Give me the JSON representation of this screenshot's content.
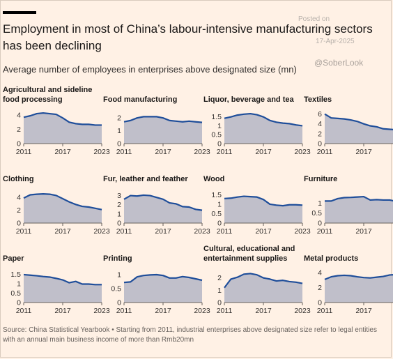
{
  "header": {
    "title": "Employment in most of China’s labour-intensive manufacturing sectors has been declining",
    "subtitle": "Average number of employees in enterprises above designated size (mn)"
  },
  "watermark": {
    "posted": "Posted on",
    "date": "17-Apr-2025",
    "handle": "@SoberLook"
  },
  "source": "Source: China Statistical Yearbook • Starting from 2011, industrial enterprises above designated size refer to legal entities with an annual main business income of more than Rmb20mn",
  "colors": {
    "line": "#1f4e9a",
    "fill": "#c0bfca",
    "background": "#fff1e5"
  },
  "chart_data": [
    {
      "type": "area",
      "title": "Agricultural and sideline food processing",
      "x": [
        2011,
        2012,
        2013,
        2014,
        2015,
        2016,
        2017,
        2018,
        2019,
        2020,
        2021,
        2022,
        2023
      ],
      "values": [
        3.7,
        3.9,
        4.2,
        4.3,
        4.2,
        4.1,
        3.6,
        3.0,
        2.8,
        2.7,
        2.7,
        2.6,
        2.6
      ],
      "ylim": [
        0,
        4.5
      ],
      "yticks": [
        0,
        2,
        4
      ],
      "xticks": [
        2011,
        2017,
        2023
      ]
    },
    {
      "type": "area",
      "title": "Food manufacturing",
      "x": [
        2011,
        2012,
        2013,
        2014,
        2015,
        2016,
        2017,
        2018,
        2019,
        2020,
        2021,
        2022,
        2023
      ],
      "values": [
        1.7,
        1.8,
        2.0,
        2.1,
        2.1,
        2.1,
        2.0,
        1.8,
        1.75,
        1.7,
        1.75,
        1.7,
        1.65
      ],
      "ylim": [
        0,
        2.5
      ],
      "yticks": [
        0,
        1,
        2
      ],
      "xticks": [
        2011,
        2017,
        2023
      ]
    },
    {
      "type": "area",
      "title": "Liquor, beverage and tea",
      "x": [
        2011,
        2012,
        2013,
        2014,
        2015,
        2016,
        2017,
        2018,
        2019,
        2020,
        2021,
        2022,
        2023
      ],
      "values": [
        1.42,
        1.5,
        1.6,
        1.65,
        1.68,
        1.62,
        1.5,
        1.3,
        1.2,
        1.15,
        1.12,
        1.05,
        1.0
      ],
      "ylim": [
        0,
        1.8
      ],
      "yticks": [
        0,
        0.5,
        1,
        1.5
      ],
      "yticklabels": [
        "0",
        "0.5",
        "1",
        "1.5"
      ],
      "xticks": [
        2011,
        2017,
        2023
      ]
    },
    {
      "type": "area",
      "title": "Textiles",
      "x": [
        2011,
        2012,
        2013,
        2014,
        2015,
        2016,
        2017,
        2018,
        2019,
        2020,
        2021,
        2022,
        2023
      ],
      "values": [
        6.0,
        5.2,
        5.1,
        5.0,
        4.8,
        4.5,
        4.0,
        3.6,
        3.4,
        3.0,
        2.9,
        2.8,
        2.7
      ],
      "ylim": [
        0,
        6.5
      ],
      "yticks": [
        0,
        2,
        4,
        6
      ],
      "xticks": [
        2011,
        2017,
        2023
      ]
    },
    {
      "type": "area",
      "title": "Clothing",
      "x": [
        2011,
        2012,
        2013,
        2014,
        2015,
        2016,
        2017,
        2018,
        2019,
        2020,
        2021,
        2022,
        2023
      ],
      "values": [
        3.9,
        4.4,
        4.5,
        4.55,
        4.5,
        4.3,
        3.8,
        3.3,
        2.9,
        2.6,
        2.5,
        2.3,
        2.1
      ],
      "ylim": [
        0,
        5
      ],
      "yticks": [
        0,
        2,
        4
      ],
      "xticks": [
        2011,
        2017,
        2023
      ]
    },
    {
      "type": "area",
      "title": "Fur, leather and feather",
      "x": [
        2011,
        2012,
        2013,
        2014,
        2015,
        2016,
        2017,
        2018,
        2019,
        2020,
        2021,
        2022,
        2023
      ],
      "values": [
        2.6,
        3.0,
        2.95,
        3.05,
        3.0,
        2.8,
        2.6,
        2.2,
        2.1,
        1.8,
        1.75,
        1.5,
        1.4
      ],
      "ylim": [
        0,
        3.5
      ],
      "yticks": [
        0,
        1,
        2,
        3
      ],
      "xticks": [
        2011,
        2017,
        2023
      ]
    },
    {
      "type": "area",
      "title": "Wood",
      "x": [
        2011,
        2012,
        2013,
        2014,
        2015,
        2016,
        2017,
        2018,
        2019,
        2020,
        2021,
        2022,
        2023
      ],
      "values": [
        1.3,
        1.32,
        1.38,
        1.42,
        1.4,
        1.38,
        1.25,
        1.0,
        0.95,
        0.92,
        0.97,
        0.97,
        0.95
      ],
      "ylim": [
        0,
        1.7
      ],
      "yticks": [
        0,
        0.5,
        1,
        1.5
      ],
      "yticklabels": [
        "0",
        "0.5",
        "1",
        "1.5"
      ],
      "xticks": [
        2011,
        2017,
        2023
      ]
    },
    {
      "type": "area",
      "title": "Furniture",
      "x": [
        2011,
        2012,
        2013,
        2014,
        2015,
        2016,
        2017,
        2018,
        2019,
        2020,
        2021,
        2022,
        2023
      ],
      "values": [
        1.1,
        1.1,
        1.22,
        1.27,
        1.28,
        1.3,
        1.32,
        1.15,
        1.17,
        1.15,
        1.15,
        1.08,
        0.98
      ],
      "ylim": [
        0,
        1.6
      ],
      "yticks": [
        0,
        0.5,
        1
      ],
      "yticklabels": [
        "0",
        "0.5",
        "1"
      ],
      "xticks": [
        2011,
        2017,
        2023
      ]
    },
    {
      "type": "area",
      "title": "Paper",
      "x": [
        2011,
        2012,
        2013,
        2014,
        2015,
        2016,
        2017,
        2018,
        2019,
        2020,
        2021,
        2022,
        2023
      ],
      "values": [
        1.48,
        1.45,
        1.42,
        1.38,
        1.35,
        1.28,
        1.2,
        1.05,
        1.12,
        0.98,
        0.98,
        0.95,
        0.95
      ],
      "ylim": [
        0,
        1.7
      ],
      "yticks": [
        0,
        0.5,
        1,
        1.5
      ],
      "yticklabels": [
        "0",
        "0.5",
        "1",
        "1.5"
      ],
      "xticks": [
        2011,
        2017,
        2023
      ]
    },
    {
      "type": "area",
      "title": "Printing",
      "x": [
        2011,
        2012,
        2013,
        2014,
        2015,
        2016,
        2017,
        2018,
        2019,
        2020,
        2021,
        2022,
        2023
      ],
      "values": [
        0.72,
        0.74,
        0.92,
        0.97,
        0.99,
        1.0,
        0.97,
        0.88,
        0.88,
        0.93,
        0.9,
        0.85,
        0.8
      ],
      "ylim": [
        0,
        1.15
      ],
      "yticks": [
        0,
        0.5,
        1
      ],
      "yticklabels": [
        "0",
        "0.5",
        "1"
      ],
      "xticks": [
        2011,
        2017,
        2023
      ]
    },
    {
      "type": "area",
      "title": "Cultural, educational and entertainment supplies",
      "x": [
        2011,
        2012,
        2013,
        2014,
        2015,
        2016,
        2017,
        2018,
        2019,
        2020,
        2021,
        2022,
        2023
      ],
      "values": [
        1.2,
        1.9,
        2.05,
        2.3,
        2.35,
        2.25,
        2.0,
        1.9,
        1.75,
        1.8,
        1.7,
        1.65,
        1.55
      ],
      "ylim": [
        0,
        2.6
      ],
      "yticks": [
        0,
        1,
        2
      ],
      "xticks": [
        2011,
        2017,
        2023
      ]
    },
    {
      "type": "area",
      "title": "Metal products",
      "x": [
        2011,
        2012,
        2013,
        2014,
        2015,
        2016,
        2017,
        2018,
        2019,
        2020,
        2021,
        2022,
        2023
      ],
      "values": [
        3.1,
        3.45,
        3.6,
        3.65,
        3.6,
        3.45,
        3.35,
        3.3,
        3.4,
        3.5,
        3.7,
        3.75,
        3.7
      ],
      "ylim": [
        0,
        4.3
      ],
      "yticks": [
        0,
        2,
        4
      ],
      "xticks": [
        2011,
        2017,
        2023
      ]
    }
  ]
}
